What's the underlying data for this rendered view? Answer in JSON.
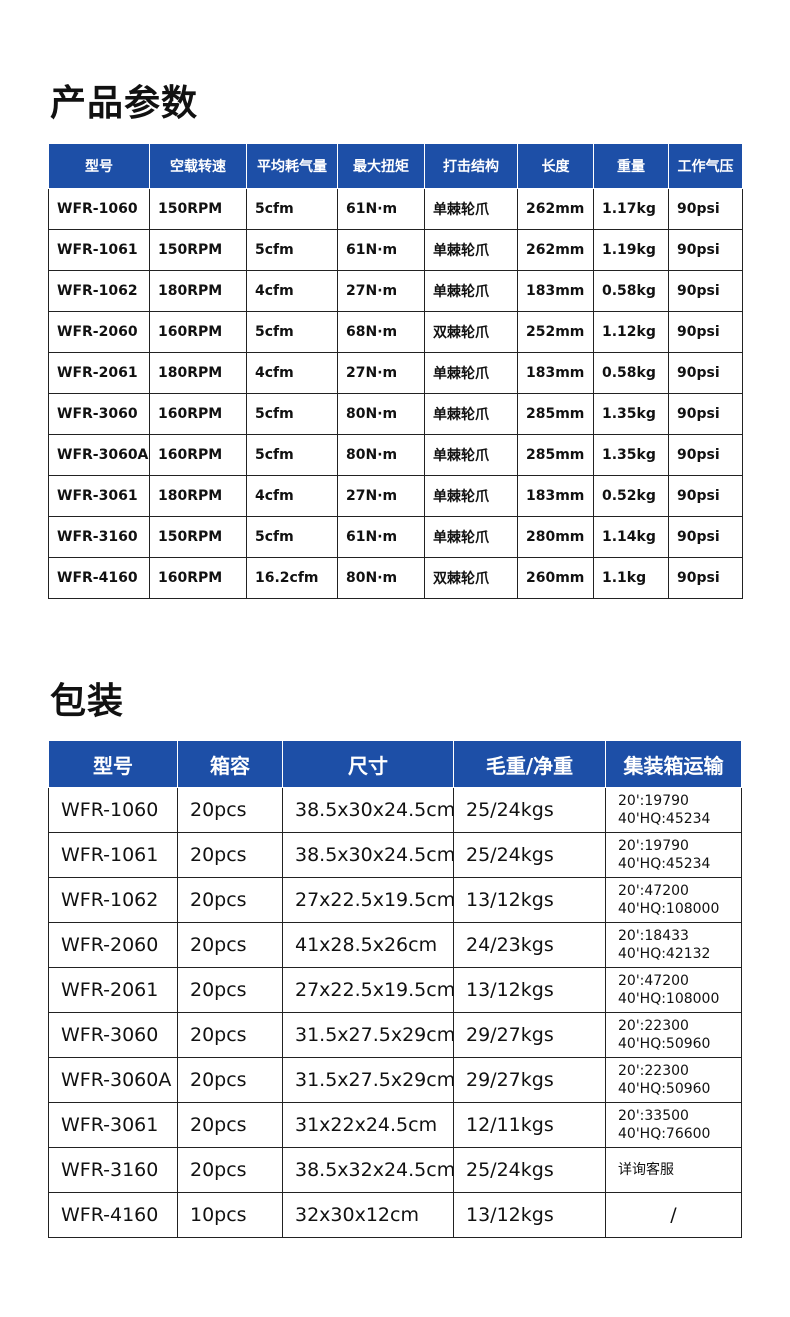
{
  "params": {
    "title": "产品参数",
    "headers": [
      "型号",
      "空载转速",
      "平均耗气量",
      "最大扭矩",
      "打击结构",
      "长度",
      "重量",
      "工作气压"
    ],
    "rows": [
      [
        "WFR-1060",
        "150RPM",
        "5cfm",
        "61N·m",
        "单棘轮爪",
        "262mm",
        "1.17kg",
        "90psi"
      ],
      [
        "WFR-1061",
        "150RPM",
        "5cfm",
        "61N·m",
        "单棘轮爪",
        "262mm",
        "1.19kg",
        "90psi"
      ],
      [
        "WFR-1062",
        "180RPM",
        "4cfm",
        "27N·m",
        "单棘轮爪",
        "183mm",
        "0.58kg",
        "90psi"
      ],
      [
        "WFR-2060",
        "160RPM",
        "5cfm",
        "68N·m",
        "双棘轮爪",
        "252mm",
        "1.12kg",
        "90psi"
      ],
      [
        "WFR-2061",
        "180RPM",
        "4cfm",
        "27N·m",
        "单棘轮爪",
        "183mm",
        "0.58kg",
        "90psi"
      ],
      [
        "WFR-3060",
        "160RPM",
        "5cfm",
        "80N·m",
        "单棘轮爪",
        "285mm",
        "1.35kg",
        "90psi"
      ],
      [
        "WFR-3060A",
        "160RPM",
        "5cfm",
        "80N·m",
        "单棘轮爪",
        "285mm",
        "1.35kg",
        "90psi"
      ],
      [
        "WFR-3061",
        "180RPM",
        "4cfm",
        "27N·m",
        "单棘轮爪",
        "183mm",
        "0.52kg",
        "90psi"
      ],
      [
        "WFR-3160",
        "150RPM",
        "5cfm",
        "61N·m",
        "单棘轮爪",
        "280mm",
        "1.14kg",
        "90psi"
      ],
      [
        "WFR-4160",
        "160RPM",
        "16.2cfm",
        "80N·m",
        "双棘轮爪",
        "260mm",
        "1.1kg",
        "90psi"
      ]
    ]
  },
  "packaging": {
    "title": "包装",
    "headers": [
      "型号",
      "箱容",
      "尺寸",
      "毛重/净重",
      "集装箱运输"
    ],
    "rows": [
      {
        "model": "WFR-1060",
        "qty": "20pcs",
        "size": "38.5x30x24.5cm",
        "weight": "25/24kgs",
        "ship": [
          "20':19790",
          "40'HQ:45234"
        ]
      },
      {
        "model": "WFR-1061",
        "qty": "20pcs",
        "size": "38.5x30x24.5cm",
        "weight": "25/24kgs",
        "ship": [
          "20':19790",
          "40'HQ:45234"
        ]
      },
      {
        "model": "WFR-1062",
        "qty": "20pcs",
        "size": "27x22.5x19.5cm",
        "weight": "13/12kgs",
        "ship": [
          "20':47200",
          "40'HQ:108000"
        ]
      },
      {
        "model": "WFR-2060",
        "qty": "20pcs",
        "size": "41x28.5x26cm",
        "weight": "24/23kgs",
        "ship": [
          "20':18433",
          "40'HQ:42132"
        ]
      },
      {
        "model": "WFR-2061",
        "qty": "20pcs",
        "size": "27x22.5x19.5cm",
        "weight": "13/12kgs",
        "ship": [
          "20':47200",
          "40'HQ:108000"
        ]
      },
      {
        "model": "WFR-3060",
        "qty": "20pcs",
        "size": "31.5x27.5x29cm",
        "weight": "29/27kgs",
        "ship": [
          "20':22300",
          "40'HQ:50960"
        ]
      },
      {
        "model": "WFR-3060A",
        "qty": "20pcs",
        "size": "31.5x27.5x29cm",
        "weight": "29/27kgs",
        "ship": [
          "20':22300",
          "40'HQ:50960"
        ]
      },
      {
        "model": "WFR-3061",
        "qty": "20pcs",
        "size": "31x22x24.5cm",
        "weight": "12/11kgs",
        "ship": [
          "20':33500",
          "40'HQ:76600"
        ]
      },
      {
        "model": "WFR-3160",
        "qty": "20pcs",
        "size": "38.5x32x24.5cm",
        "weight": "25/24kgs",
        "ship": [
          "详询客服"
        ]
      },
      {
        "model": "WFR-4160",
        "qty": "10pcs",
        "size": "32x30x12cm",
        "weight": "13/12kgs",
        "ship": [
          "/"
        ],
        "ship_center": true
      }
    ]
  },
  "colors": {
    "header_bg": "#1d4fa7",
    "header_text": "#ffffff",
    "border": "#222222"
  }
}
